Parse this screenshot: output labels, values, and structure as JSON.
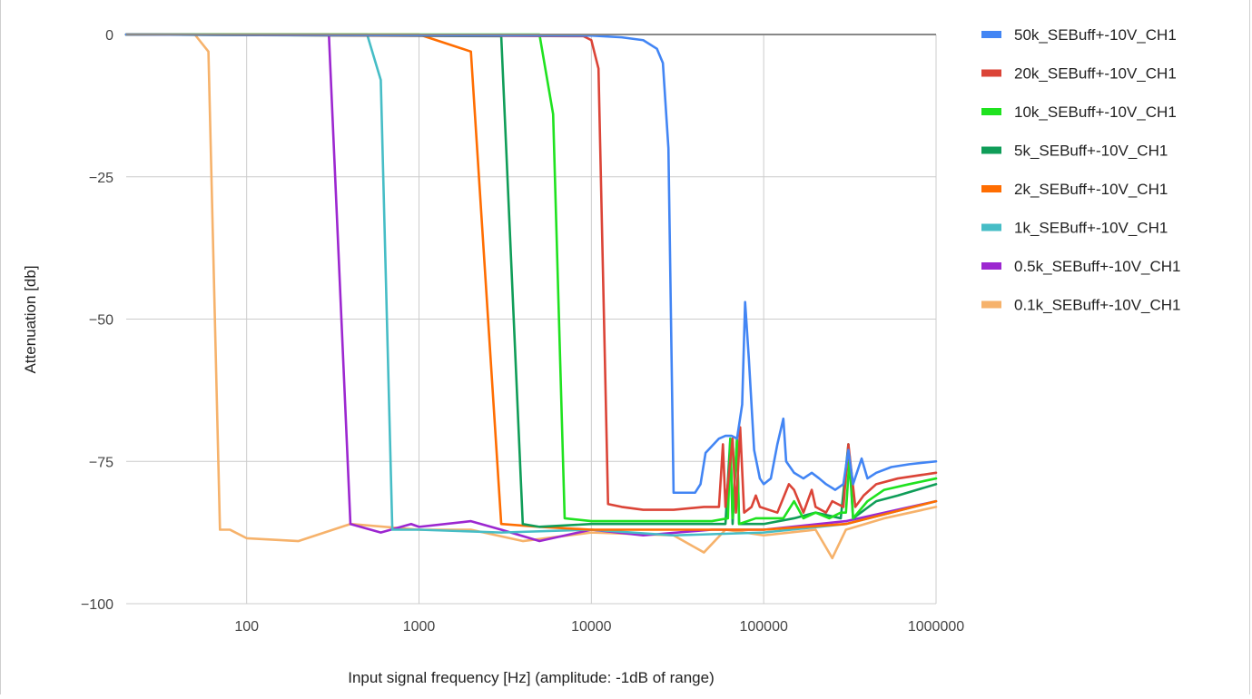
{
  "chart_data": {
    "type": "line",
    "title": "",
    "xlabel": "Input signal frequency [Hz] (amplitude: -1dB of range)",
    "ylabel": "Attenuation [db]",
    "x_scale": "log",
    "xlim": [
      20,
      1000000
    ],
    "ylim": [
      -100,
      0
    ],
    "x_ticks": [
      100,
      1000,
      10000,
      100000,
      1000000
    ],
    "x_tick_labels": [
      "100",
      "1000",
      "10000",
      "100000",
      "1000000"
    ],
    "y_ticks": [
      0,
      -25,
      -50,
      -75,
      -100
    ],
    "y_tick_labels": [
      "0",
      "−25",
      "−50",
      "−75",
      "−100"
    ],
    "grid": true,
    "legend_position": "right",
    "series": [
      {
        "name": "50k_SEBuff+-10V_CH1",
        "color": "#4285f4",
        "points": [
          [
            20,
            0
          ],
          [
            10000,
            -0.2
          ],
          [
            15000,
            -0.5
          ],
          [
            20000,
            -1
          ],
          [
            24000,
            -2.5
          ],
          [
            26000,
            -5
          ],
          [
            28000,
            -20
          ],
          [
            30000,
            -80.5
          ],
          [
            40000,
            -80.5
          ],
          [
            43000,
            -79
          ],
          [
            46000,
            -73.5
          ],
          [
            55000,
            -71
          ],
          [
            60000,
            -70.5
          ],
          [
            65000,
            -70.5
          ],
          [
            70000,
            -71
          ],
          [
            75000,
            -65
          ],
          [
            78000,
            -47
          ],
          [
            82000,
            -57
          ],
          [
            88000,
            -73
          ],
          [
            95000,
            -78
          ],
          [
            100000,
            -79
          ],
          [
            110000,
            -78
          ],
          [
            120000,
            -72
          ],
          [
            130000,
            -67.5
          ],
          [
            135000,
            -75
          ],
          [
            150000,
            -77
          ],
          [
            170000,
            -78
          ],
          [
            190000,
            -77
          ],
          [
            210000,
            -78
          ],
          [
            230000,
            -79
          ],
          [
            260000,
            -80
          ],
          [
            290000,
            -79
          ],
          [
            310000,
            -73
          ],
          [
            330000,
            -79
          ],
          [
            370000,
            -74.5
          ],
          [
            400000,
            -78
          ],
          [
            450000,
            -77
          ],
          [
            550000,
            -76
          ],
          [
            700000,
            -75.5
          ],
          [
            1000000,
            -75
          ]
        ]
      },
      {
        "name": "20k_SEBuff+-10V_CH1",
        "color": "#db4437",
        "points": [
          [
            20,
            0
          ],
          [
            9000,
            -0.3
          ],
          [
            10000,
            -1
          ],
          [
            11000,
            -6
          ],
          [
            12500,
            -82.5
          ],
          [
            15000,
            -83
          ],
          [
            20000,
            -83.5
          ],
          [
            30000,
            -83.5
          ],
          [
            45000,
            -83
          ],
          [
            55000,
            -83
          ],
          [
            58000,
            -72
          ],
          [
            60000,
            -83
          ],
          [
            66000,
            -71
          ],
          [
            69000,
            -84
          ],
          [
            73000,
            -69
          ],
          [
            77000,
            -84
          ],
          [
            85000,
            -83
          ],
          [
            90000,
            -81
          ],
          [
            95000,
            -83
          ],
          [
            120000,
            -84
          ],
          [
            140000,
            -79
          ],
          [
            150000,
            -80
          ],
          [
            170000,
            -84
          ],
          [
            190000,
            -80
          ],
          [
            200000,
            -83
          ],
          [
            230000,
            -84
          ],
          [
            250000,
            -82
          ],
          [
            290000,
            -83
          ],
          [
            310000,
            -72
          ],
          [
            340000,
            -83
          ],
          [
            380000,
            -81
          ],
          [
            450000,
            -79
          ],
          [
            600000,
            -78
          ],
          [
            1000000,
            -77
          ]
        ]
      },
      {
        "name": "10k_SEBuff+-10V_CH1",
        "color": "#1fe21f",
        "points": [
          [
            20,
            0
          ],
          [
            5000,
            0
          ],
          [
            6000,
            -14
          ],
          [
            7000,
            -85
          ],
          [
            10000,
            -85.5
          ],
          [
            20000,
            -85.5
          ],
          [
            50000,
            -85.5
          ],
          [
            62000,
            -85
          ],
          [
            64000,
            -71
          ],
          [
            66000,
            -85
          ],
          [
            70000,
            -71
          ],
          [
            72000,
            -86
          ],
          [
            90000,
            -85
          ],
          [
            130000,
            -85
          ],
          [
            150000,
            -82
          ],
          [
            170000,
            -85
          ],
          [
            200000,
            -84
          ],
          [
            240000,
            -85
          ],
          [
            280000,
            -84
          ],
          [
            300000,
            -84
          ],
          [
            315000,
            -74
          ],
          [
            330000,
            -85
          ],
          [
            400000,
            -82
          ],
          [
            500000,
            -80
          ],
          [
            700000,
            -79
          ],
          [
            1000000,
            -78
          ]
        ]
      },
      {
        "name": "5k_SEBuff+-10V_CH1",
        "color": "#0f9d58",
        "points": [
          [
            20,
            0
          ],
          [
            3000,
            -0.3
          ],
          [
            4000,
            -86
          ],
          [
            5000,
            -86.5
          ],
          [
            10000,
            -86
          ],
          [
            30000,
            -86
          ],
          [
            60000,
            -86
          ],
          [
            64000,
            -71
          ],
          [
            66000,
            -86
          ],
          [
            70000,
            -71
          ],
          [
            72000,
            -86
          ],
          [
            100000,
            -86
          ],
          [
            150000,
            -85
          ],
          [
            200000,
            -84
          ],
          [
            280000,
            -85
          ],
          [
            310000,
            -72
          ],
          [
            330000,
            -85
          ],
          [
            450000,
            -82
          ],
          [
            600000,
            -81
          ],
          [
            1000000,
            -79
          ]
        ]
      },
      {
        "name": "2k_SEBuff+-10V_CH1",
        "color": "#ff6d01",
        "points": [
          [
            20,
            0
          ],
          [
            1000,
            0
          ],
          [
            2000,
            -3
          ],
          [
            3000,
            -86
          ],
          [
            5000,
            -86.5
          ],
          [
            10000,
            -87
          ],
          [
            30000,
            -87
          ],
          [
            100000,
            -87
          ],
          [
            300000,
            -86
          ],
          [
            1000000,
            -82
          ]
        ]
      },
      {
        "name": "1k_SEBuff+-10V_CH1",
        "color": "#46bdc6",
        "points": [
          [
            20,
            0
          ],
          [
            500,
            0
          ],
          [
            600,
            -8
          ],
          [
            700,
            -87
          ],
          [
            1000,
            -87
          ],
          [
            3000,
            -87.5
          ],
          [
            10000,
            -87
          ],
          [
            30000,
            -88
          ],
          [
            100000,
            -87.5
          ],
          [
            300000,
            -86
          ],
          [
            1000000,
            -82
          ]
        ]
      },
      {
        "name": "0.5k_SEBuff+-10V_CH1",
        "color": "#9c27d0",
        "points": [
          [
            20,
            0
          ],
          [
            300,
            0
          ],
          [
            400,
            -86
          ],
          [
            600,
            -87.5
          ],
          [
            900,
            -86
          ],
          [
            1000,
            -86.5
          ],
          [
            2000,
            -85.5
          ],
          [
            3000,
            -87
          ],
          [
            5000,
            -89
          ],
          [
            10000,
            -87
          ],
          [
            20000,
            -88
          ],
          [
            50000,
            -87
          ],
          [
            100000,
            -87
          ],
          [
            300000,
            -85.5
          ],
          [
            1000000,
            -82
          ]
        ]
      },
      {
        "name": "0.1k_SEBuff+-10V_CH1",
        "color": "#f6b26b",
        "points": [
          [
            20,
            0
          ],
          [
            50,
            0
          ],
          [
            60,
            -3
          ],
          [
            70,
            -87
          ],
          [
            80,
            -87
          ],
          [
            100,
            -88.5
          ],
          [
            200,
            -89
          ],
          [
            400,
            -86
          ],
          [
            1000,
            -87
          ],
          [
            2000,
            -87
          ],
          [
            4000,
            -89
          ],
          [
            10000,
            -87.5
          ],
          [
            30000,
            -88
          ],
          [
            45000,
            -91
          ],
          [
            60000,
            -87
          ],
          [
            100000,
            -88
          ],
          [
            200000,
            -87
          ],
          [
            250000,
            -92
          ],
          [
            300000,
            -87
          ],
          [
            500000,
            -85
          ],
          [
            1000000,
            -83
          ]
        ]
      }
    ]
  }
}
